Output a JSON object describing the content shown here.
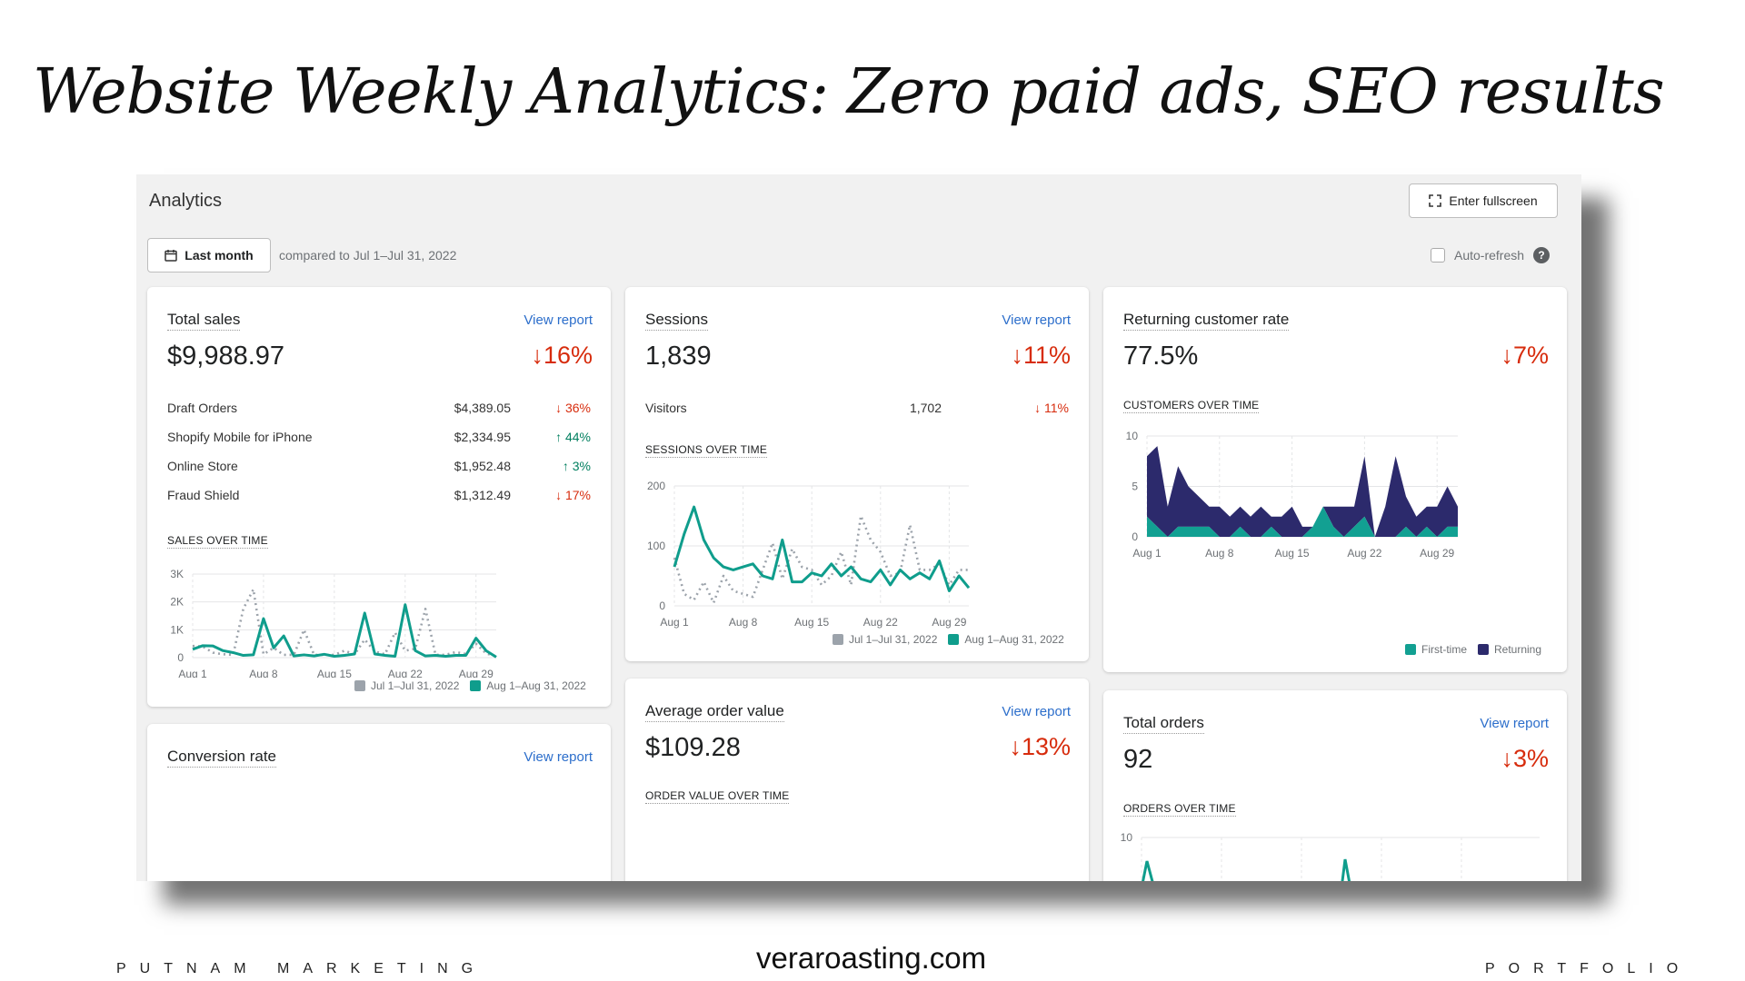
{
  "slide": {
    "title": "Website Weekly Analytics: Zero paid ads, SEO results",
    "footer_left": "PUTNAM MARKETING",
    "footer_center": "veraroasting.com",
    "footer_right": "PORTFOLIO"
  },
  "header": {
    "title": "Analytics",
    "fullscreen_label": "Enter fullscreen",
    "date_label": "Last month",
    "compare_text": "compared to Jul 1–Jul 31, 2022",
    "auto_refresh_label": "Auto-refresh",
    "help_symbol": "?"
  },
  "colors": {
    "current": "#0f9d8c",
    "previous": "#9ca3ab",
    "returning": "#2c2a6c",
    "first_time": "#12a092",
    "negative": "#d72c0d",
    "positive": "#007f5f",
    "link": "#2c6ecb"
  },
  "total_sales": {
    "label": "Total sales",
    "view_report": "View report",
    "value": "$9,988.97",
    "change": "↓16%",
    "breakdown": [
      {
        "name": "Draft Orders",
        "value": "$4,389.05",
        "change": "↓ 36%",
        "dir": "down"
      },
      {
        "name": "Shopify Mobile for iPhone",
        "value": "$2,334.95",
        "change": "↑ 44%",
        "dir": "up"
      },
      {
        "name": "Online Store",
        "value": "$1,952.48",
        "change": "↑ 3%",
        "dir": "up"
      },
      {
        "name": "Fraud Shield",
        "value": "$1,312.49",
        "change": "↓ 17%",
        "dir": "down"
      }
    ],
    "chart_caption": "SALES OVER TIME",
    "legend_prev": "Jul 1–Jul 31, 2022",
    "legend_curr": "Aug 1–Aug 31, 2022"
  },
  "sessions": {
    "label": "Sessions",
    "view_report": "View report",
    "value": "1,839",
    "change": "↓11%",
    "visitors_label": "Visitors",
    "visitors_value": "1,702",
    "visitors_change": "↓ 11%",
    "chart_caption": "SESSIONS OVER TIME",
    "legend_prev": "Jul 1–Jul 31, 2022",
    "legend_curr": "Aug 1–Aug 31, 2022"
  },
  "returning_rate": {
    "label": "Returning customer rate",
    "value": "77.5%",
    "change": "↓7%",
    "chart_caption": "CUSTOMERS OVER TIME",
    "legend_first": "First-time",
    "legend_returning": "Returning"
  },
  "aov": {
    "label": "Average order value",
    "view_report": "View report",
    "value": "$109.28",
    "change": "↓13%",
    "chart_caption": "ORDER VALUE OVER TIME"
  },
  "total_orders": {
    "label": "Total orders",
    "view_report": "View report",
    "value": "92",
    "change": "↓3%",
    "chart_caption": "ORDERS OVER TIME",
    "y_tick": "10"
  },
  "conversion": {
    "label": "Conversion rate",
    "view_report": "View report"
  },
  "chart_data": [
    {
      "id": "sales",
      "type": "line",
      "title": "SALES OVER TIME",
      "x_ticks": [
        "Aug 1",
        "Aug 8",
        "Aug 15",
        "Aug 22",
        "Aug 29"
      ],
      "y_ticks": [
        "3K",
        "2K",
        "1K",
        "0"
      ],
      "ylim": [
        0,
        3000
      ],
      "x": [
        1,
        2,
        3,
        4,
        5,
        6,
        7,
        8,
        9,
        10,
        11,
        12,
        13,
        14,
        15,
        16,
        17,
        18,
        19,
        20,
        21,
        22,
        23,
        24,
        25,
        26,
        27,
        28,
        29,
        30,
        31
      ],
      "series": [
        {
          "name": "Jul 1–Jul 31, 2022",
          "style": "dotted",
          "values": [
            420,
            400,
            180,
            120,
            100,
            1750,
            2450,
            120,
            350,
            100,
            100,
            1000,
            100,
            100,
            100,
            250,
            120,
            650,
            220,
            120,
            900,
            250,
            320,
            1750,
            100,
            100,
            200,
            130,
            500,
            150,
            50
          ]
        },
        {
          "name": "Aug 1–Aug 31, 2022",
          "values": [
            300,
            430,
            420,
            250,
            180,
            80,
            100,
            1400,
            350,
            780,
            60,
            100,
            60,
            120,
            50,
            80,
            130,
            1600,
            130,
            80,
            50,
            1900,
            250,
            60,
            80,
            50,
            80,
            80,
            700,
            250,
            20
          ]
        }
      ]
    },
    {
      "id": "sessions",
      "type": "line",
      "title": "SESSIONS OVER TIME",
      "x_ticks": [
        "Aug 1",
        "Aug 8",
        "Aug 15",
        "Aug 22",
        "Aug 29"
      ],
      "y_ticks": [
        "200",
        "100",
        "0"
      ],
      "ylim": [
        0,
        200
      ],
      "x": [
        1,
        2,
        3,
        4,
        5,
        6,
        7,
        8,
        9,
        10,
        11,
        12,
        13,
        14,
        15,
        16,
        17,
        18,
        19,
        20,
        21,
        22,
        23,
        24,
        25,
        26,
        27,
        28,
        29,
        30,
        31
      ],
      "series": [
        {
          "name": "Jul 1–Jul 31, 2022",
          "style": "dotted",
          "values": [
            80,
            20,
            10,
            40,
            5,
            50,
            25,
            20,
            15,
            60,
            105,
            45,
            95,
            65,
            60,
            35,
            50,
            90,
            35,
            150,
            110,
            90,
            50,
            55,
            135,
            60,
            60,
            70,
            35,
            60,
            60
          ]
        },
        {
          "name": "Aug 1–Aug 31, 2022",
          "values": [
            65,
            120,
            165,
            110,
            80,
            65,
            60,
            65,
            70,
            50,
            45,
            110,
            40,
            40,
            55,
            50,
            70,
            50,
            65,
            45,
            40,
            60,
            35,
            60,
            45,
            55,
            45,
            75,
            25,
            50,
            30
          ]
        }
      ]
    },
    {
      "id": "customers",
      "type": "area",
      "title": "CUSTOMERS OVER TIME",
      "x_ticks": [
        "Aug 1",
        "Aug 8",
        "Aug 15",
        "Aug 22",
        "Aug 29"
      ],
      "y_ticks": [
        "10",
        "5",
        "0"
      ],
      "ylim": [
        0,
        10
      ],
      "x": [
        1,
        2,
        3,
        4,
        5,
        6,
        7,
        8,
        9,
        10,
        11,
        12,
        13,
        14,
        15,
        16,
        17,
        18,
        19,
        20,
        21,
        22,
        23,
        24,
        25,
        26,
        27,
        28,
        29,
        30,
        31
      ],
      "series": [
        {
          "name": "First-time",
          "values": [
            2,
            1,
            0,
            1,
            1,
            1,
            1,
            0,
            0,
            1,
            0,
            0,
            1,
            0,
            0,
            0,
            1,
            3,
            1,
            0,
            1,
            2,
            0,
            0,
            0,
            1,
            0,
            1,
            0,
            1,
            1
          ]
        },
        {
          "name": "Returning",
          "values": [
            6,
            8,
            3,
            6,
            4,
            3,
            2,
            3,
            2,
            2,
            2,
            3,
            1,
            2,
            3,
            1,
            0,
            0,
            2,
            3,
            2,
            6,
            0,
            3,
            8,
            3,
            2,
            2,
            3,
            4,
            2
          ]
        }
      ]
    }
  ]
}
